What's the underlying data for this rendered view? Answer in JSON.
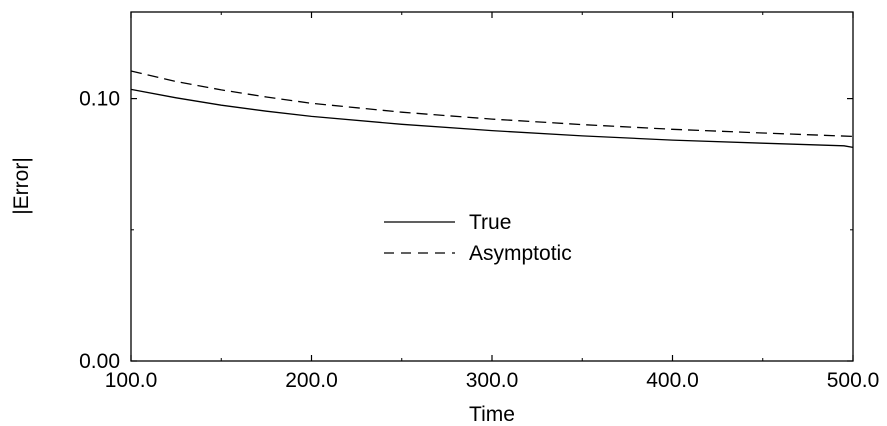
{
  "chart_data": {
    "type": "line",
    "title": "",
    "xlabel": "Time",
    "ylabel": "|Error|",
    "xlim": [
      100.0,
      500.0
    ],
    "ylim": [
      0.0,
      0.133
    ],
    "x_ticks": [
      100.0,
      200.0,
      300.0,
      400.0,
      500.0
    ],
    "x_tick_labels": [
      "100.0",
      "200.0",
      "300.0",
      "400.0",
      "500.0"
    ],
    "y_ticks": [
      0.0,
      0.1
    ],
    "y_tick_labels": [
      "0.00",
      "0.10"
    ],
    "grid": false,
    "legend_position": "center",
    "series": [
      {
        "name": "True",
        "style": "solid",
        "x": [
          100,
          125,
          150,
          175,
          200,
          250,
          300,
          350,
          400,
          450,
          495,
          500
        ],
        "y": [
          0.1035,
          0.1003,
          0.0975,
          0.0952,
          0.0932,
          0.0902,
          0.0878,
          0.0858,
          0.0842,
          0.083,
          0.082,
          0.0814
        ]
      },
      {
        "name": "Asymptotic",
        "style": "dashed",
        "x": [
          100,
          125,
          150,
          175,
          200,
          250,
          300,
          350,
          400,
          450,
          500
        ],
        "y": [
          0.1105,
          0.1065,
          0.1033,
          0.1006,
          0.0982,
          0.0948,
          0.0922,
          0.0901,
          0.0883,
          0.0869,
          0.0856
        ]
      }
    ]
  }
}
